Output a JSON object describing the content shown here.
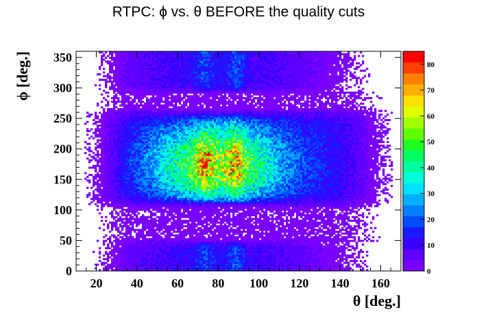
{
  "chart_data": {
    "type": "heatmap",
    "title": "RTPC: ϕ vs. θ BEFORE the quality cuts",
    "xlabel": "θ [deg.]",
    "ylabel": "ϕ [deg.]",
    "xlim": [
      10,
      170
    ],
    "ylim": [
      0,
      360
    ],
    "x_ticks": [
      20,
      40,
      60,
      80,
      100,
      120,
      140,
      160
    ],
    "y_ticks": [
      0,
      50,
      100,
      150,
      200,
      250,
      300,
      350
    ],
    "x_tick_labels": [
      "20",
      "40",
      "60",
      "80",
      "100",
      "120",
      "140",
      "160"
    ],
    "y_tick_labels": [
      "0",
      "50",
      "100",
      "150",
      "200",
      "250",
      "300",
      "350"
    ],
    "z_range": [
      0,
      85
    ],
    "z_ticks": [
      0,
      10,
      20,
      30,
      40,
      50,
      60,
      70,
      80
    ],
    "z_tick_labels": [
      "0",
      "10",
      "20",
      "30",
      "40",
      "50",
      "60",
      "70",
      "80"
    ],
    "density_description_bands": [
      {
        "phi_range": [
          110,
          260
        ],
        "theta_range": [
          40,
          115
        ],
        "peak_counts": 55,
        "peak_theta": [
          72,
          90
        ]
      },
      {
        "phi_range": [
          300,
          360
        ],
        "theta_range": [
          40,
          110
        ],
        "peak_counts": 28
      },
      {
        "phi_range": [
          0,
          50
        ],
        "theta_range": [
          40,
          110
        ],
        "peak_counts": 28
      }
    ],
    "colorbar": true,
    "grid": false
  },
  "colors": {
    "palette": [
      "#7a00ff",
      "#5e00ff",
      "#3a00ff",
      "#1a1aff",
      "#004cff",
      "#0080ff",
      "#00b0ff",
      "#00e0ff",
      "#00ffd8",
      "#00ffa0",
      "#00ff60",
      "#20ff20",
      "#60ff00",
      "#a0ff00",
      "#e0ff00",
      "#ffe000",
      "#ffb000",
      "#ff8000",
      "#ff4000",
      "#ff0000"
    ]
  }
}
